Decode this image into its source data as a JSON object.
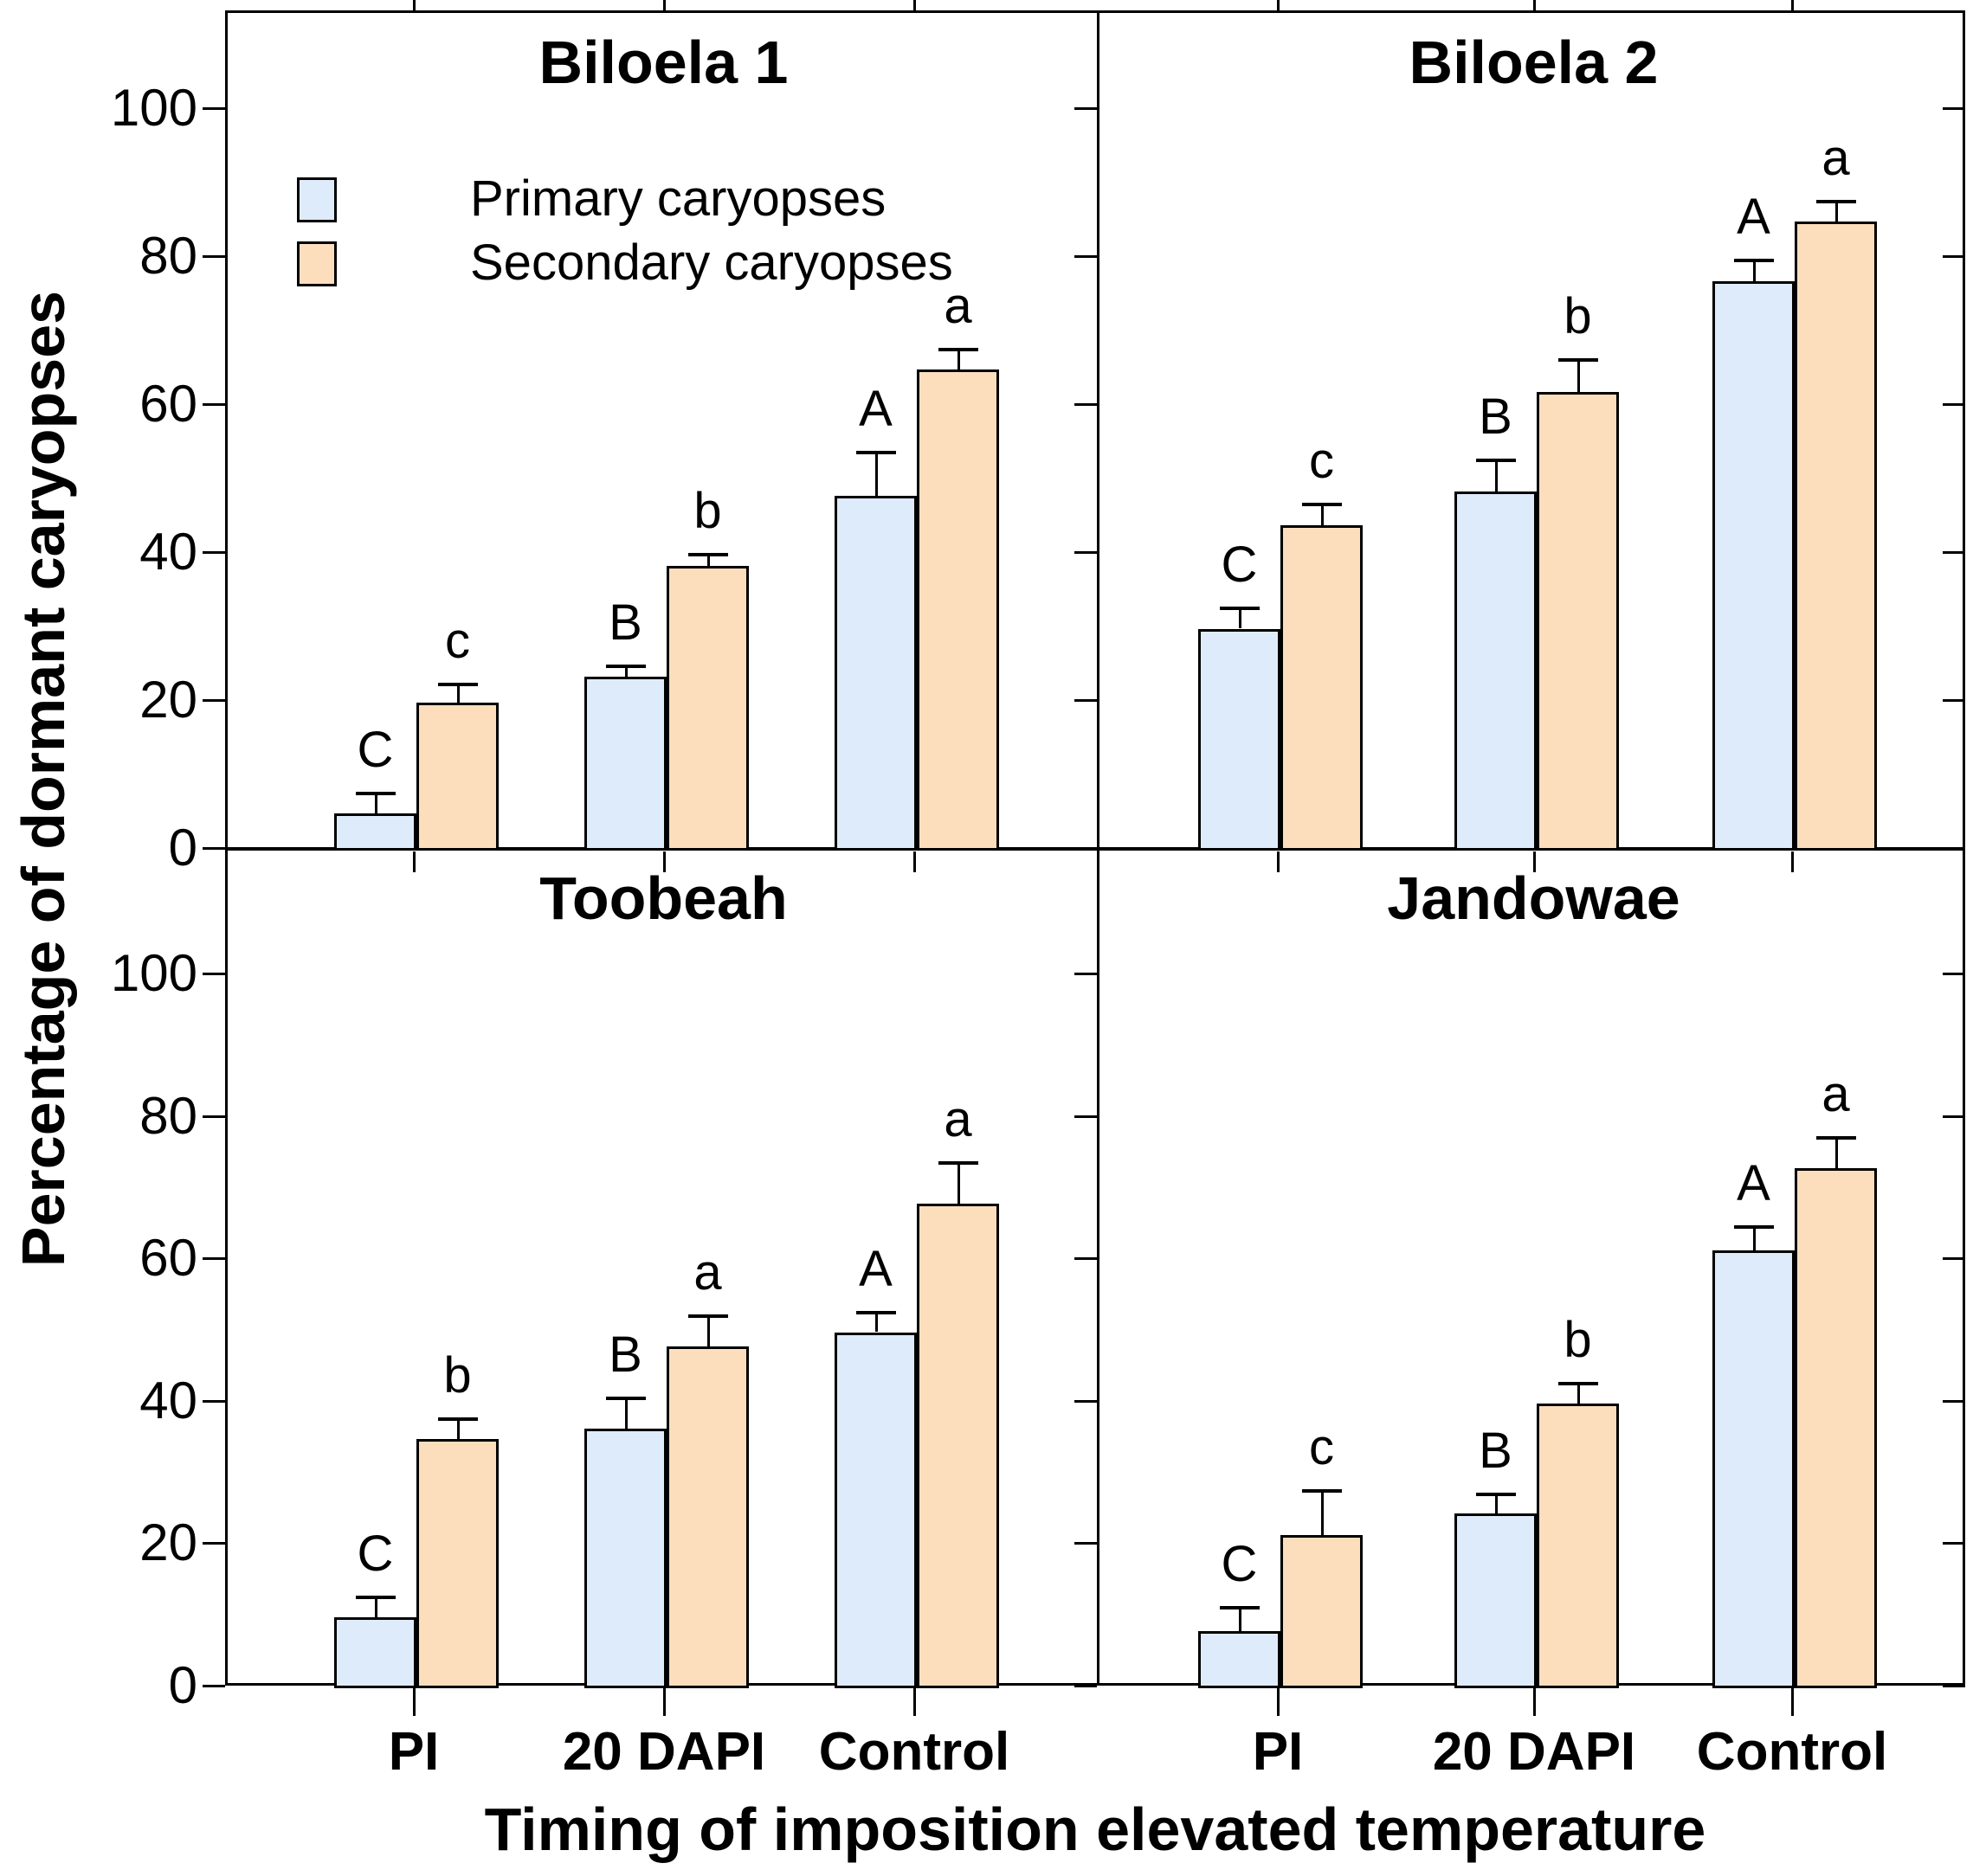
{
  "figure": {
    "y_axis_title": "Percentage of dormant caryopses",
    "x_axis_title": "Timing of imposition elevated temperature",
    "y_tick_values": [
      0,
      20,
      40,
      60,
      80,
      100
    ],
    "x_categories": [
      "PI",
      "20 DAPI",
      "Control"
    ],
    "legend": {
      "items": [
        {
          "label": "Primary caryopses",
          "color": "#DEEBFA"
        },
        {
          "label": "Secondary caryopses",
          "color": "#FCDEBD"
        }
      ]
    },
    "colors": {
      "primary_fill": "#DEEBFA",
      "secondary_fill": "#FCDEBD",
      "axis": "#000000",
      "background": "#FFFFFF"
    }
  },
  "chart_data": [
    {
      "type": "bar",
      "title": "Biloela 1",
      "categories": [
        "PI",
        "20 DAPI",
        "Control"
      ],
      "xlabel": "Timing of imposition elevated temperature",
      "ylabel": "Percentage of dormant caryopses",
      "ylim": [
        0,
        113
      ],
      "grid": false,
      "legend_position": "upper-left-inside",
      "series": [
        {
          "name": "Primary caryopses",
          "values": [
            5,
            23.5,
            48
          ],
          "errors": [
            3,
            1.7,
            6
          ],
          "letters": [
            "C",
            "B",
            "A"
          ]
        },
        {
          "name": "Secondary caryopses",
          "values": [
            20,
            38.5,
            65
          ],
          "errors": [
            2.7,
            1.7,
            3
          ],
          "letters": [
            "c",
            "b",
            "a"
          ]
        }
      ]
    },
    {
      "type": "bar",
      "title": "Biloela 2",
      "categories": [
        "PI",
        "20 DAPI",
        "Control"
      ],
      "xlabel": "Timing of imposition elevated temperature",
      "ylabel": "Percentage of dormant caryopses",
      "ylim": [
        0,
        113
      ],
      "grid": false,
      "series": [
        {
          "name": "Primary caryopses",
          "values": [
            30,
            48.5,
            77
          ],
          "errors": [
            3,
            4.5,
            3
          ],
          "letters": [
            "C",
            "B",
            "A"
          ]
        },
        {
          "name": "Secondary caryopses",
          "values": [
            44,
            62,
            85
          ],
          "errors": [
            3,
            4.5,
            3
          ],
          "letters": [
            "c",
            "b",
            "a"
          ]
        }
      ]
    },
    {
      "type": "bar",
      "title": "Toobeah",
      "categories": [
        "PI",
        "20 DAPI",
        "Control"
      ],
      "xlabel": "Timing of imposition elevated temperature",
      "ylabel": "Percentage of dormant caryopses",
      "ylim": [
        0,
        118
      ],
      "grid": false,
      "series": [
        {
          "name": "Primary caryopses",
          "values": [
            10,
            36.5,
            50
          ],
          "errors": [
            3,
            4.5,
            3
          ],
          "letters": [
            "C",
            "B",
            "A"
          ]
        },
        {
          "name": "Secondary caryopses",
          "values": [
            35,
            48,
            68
          ],
          "errors": [
            3,
            4.5,
            6
          ],
          "letters": [
            "b",
            "a",
            "a"
          ]
        }
      ]
    },
    {
      "type": "bar",
      "title": "Jandowae",
      "categories": [
        "PI",
        "20 DAPI",
        "Control"
      ],
      "xlabel": "Timing of imposition elevated temperature",
      "ylabel": "Percentage of dormant caryopses",
      "ylim": [
        0,
        118
      ],
      "grid": false,
      "series": [
        {
          "name": "Primary caryopses",
          "values": [
            8,
            24.5,
            61.5
          ],
          "errors": [
            3.5,
            3,
            3.5
          ],
          "letters": [
            "C",
            "B",
            "A"
          ]
        },
        {
          "name": "Secondary caryopses",
          "values": [
            21.5,
            40,
            73
          ],
          "errors": [
            6.5,
            3,
            4.5
          ],
          "letters": [
            "c",
            "b",
            "a"
          ]
        }
      ]
    }
  ]
}
